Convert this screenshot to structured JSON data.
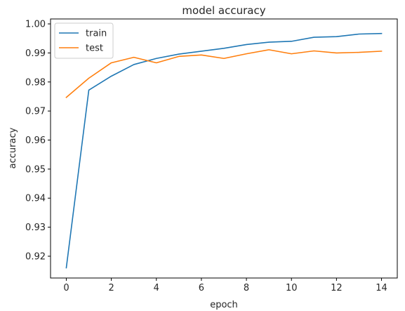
{
  "chart_data": {
    "type": "line",
    "title": "model accuracy",
    "xlabel": "epoch",
    "ylabel": "accuracy",
    "xlim": [
      -0.7,
      14.7
    ],
    "ylim": [
      0.9125,
      1.0017
    ],
    "xticks": [
      0,
      2,
      4,
      6,
      8,
      10,
      12,
      14
    ],
    "xtick_labels": [
      "0",
      "2",
      "4",
      "6",
      "8",
      "10",
      "12",
      "14"
    ],
    "yticks": [
      0.92,
      0.93,
      0.94,
      0.95,
      0.96,
      0.97,
      0.98,
      0.99,
      1.0
    ],
    "ytick_labels": [
      "0.92",
      "0.93",
      "0.94",
      "0.95",
      "0.96",
      "0.97",
      "0.98",
      "0.99",
      "1.00"
    ],
    "grid": false,
    "legend_position": "upper-left",
    "x": [
      0,
      1,
      2,
      3,
      4,
      5,
      6,
      7,
      8,
      9,
      10,
      11,
      12,
      13,
      14
    ],
    "series": [
      {
        "name": "train",
        "color": "#1f77b4",
        "values": [
          0.916,
          0.9772,
          0.982,
          0.986,
          0.9881,
          0.9896,
          0.9906,
          0.9916,
          0.9929,
          0.9937,
          0.994,
          0.9954,
          0.9956,
          0.9965,
          0.9967
        ]
      },
      {
        "name": "test",
        "color": "#ff7f0e",
        "values": [
          0.9747,
          0.9813,
          0.9866,
          0.9885,
          0.9866,
          0.9888,
          0.9893,
          0.9881,
          0.9897,
          0.9911,
          0.9897,
          0.9907,
          0.99,
          0.9902,
          0.9906
        ]
      }
    ]
  }
}
